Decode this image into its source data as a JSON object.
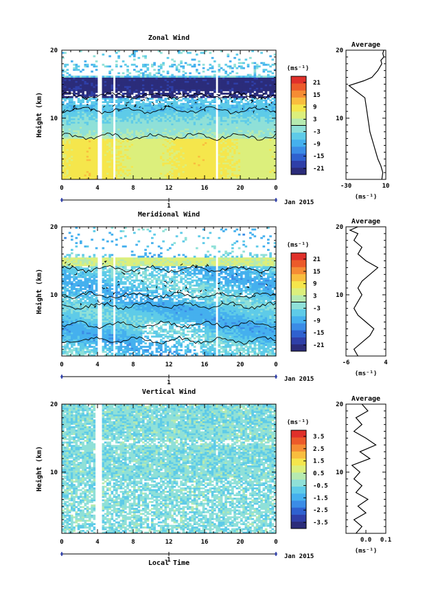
{
  "colormap": [
    "#2b2c7a",
    "#2f3fa8",
    "#2f61cf",
    "#3b8ce6",
    "#45b0ee",
    "#5ecbe8",
    "#8fe0d8",
    "#b6eab0",
    "#dcef7c",
    "#f5e64c",
    "#f9bd3e",
    "#f58c34",
    "#ec5a2a",
    "#e0302a"
  ],
  "chart_data": [
    {
      "type": "heatmap",
      "id": "zonal",
      "title": "Zonal Wind",
      "ylabel": "Height (km)",
      "xlabel": "",
      "x_ticks": [
        "0",
        "4",
        "8",
        "12",
        "16",
        "20",
        "0"
      ],
      "y_ticks": [
        "20",
        "10"
      ],
      "xlim": [
        0,
        24
      ],
      "ylim": [
        1,
        20
      ],
      "date_label": "Jan 2015",
      "day_label": "1",
      "colorbar": {
        "unit": "(ms⁻¹)",
        "range": [
          -24,
          24
        ],
        "tick_labels": [
          "21",
          "15",
          "9",
          "3",
          "-3",
          "-9",
          "-15",
          "-21"
        ],
        "tick_values": [
          21,
          15,
          9,
          3,
          -3,
          -9,
          -15,
          -21
        ],
        "zero_line": true
      },
      "profile": {
        "title": "Average",
        "xlabel": "(ms⁻¹)",
        "x_ticks": [
          "-30",
          "10"
        ],
        "x_tick_values": [
          -30,
          10
        ],
        "xlim": [
          -30,
          10
        ],
        "y_ticks": [
          "20",
          "10"
        ],
        "points": [
          [
            6,
            1
          ],
          [
            7,
            2
          ],
          [
            5,
            3
          ],
          [
            2,
            4
          ],
          [
            0,
            5
          ],
          [
            -2,
            6
          ],
          [
            -4,
            7
          ],
          [
            -6,
            8
          ],
          [
            -7,
            9
          ],
          [
            -8,
            10
          ],
          [
            -9,
            11
          ],
          [
            -10,
            12
          ],
          [
            -11,
            13
          ],
          [
            -20,
            14
          ],
          [
            -27,
            14.8
          ],
          [
            -12,
            15.5
          ],
          [
            -4,
            16
          ],
          [
            2,
            17
          ],
          [
            4,
            17.5
          ],
          [
            6,
            18
          ],
          [
            5,
            18.5
          ],
          [
            8,
            19
          ],
          [
            7,
            19.5
          ],
          [
            8,
            20
          ]
        ]
      }
    },
    {
      "type": "heatmap",
      "id": "meridional",
      "title": "Meridional Wind",
      "ylabel": "Height (km)",
      "xlabel": "",
      "x_ticks": [
        "0",
        "4",
        "8",
        "12",
        "16",
        "20",
        "0"
      ],
      "y_ticks": [
        "20",
        "10"
      ],
      "xlim": [
        0,
        24
      ],
      "ylim": [
        1,
        20
      ],
      "date_label": "Jan 2015",
      "day_label": "1",
      "colorbar": {
        "unit": "(ms⁻¹)",
        "range": [
          -24,
          24
        ],
        "tick_labels": [
          "21",
          "15",
          "9",
          "3",
          "-3",
          "-9",
          "-15",
          "-21"
        ],
        "tick_values": [
          21,
          15,
          9,
          3,
          -3,
          -9,
          -15,
          -21
        ],
        "zero_line": true
      },
      "profile": {
        "title": "Average",
        "xlabel": "(ms⁻¹)",
        "x_ticks": [
          "-6",
          "4"
        ],
        "x_tick_values": [
          -6,
          4
        ],
        "xlim": [
          -6,
          4
        ],
        "y_ticks": [
          "20",
          "10"
        ],
        "points": [
          [
            -3,
            1
          ],
          [
            -4,
            2
          ],
          [
            -2,
            3
          ],
          [
            0,
            4
          ],
          [
            1,
            5
          ],
          [
            -1,
            6
          ],
          [
            -3,
            7
          ],
          [
            -4,
            8
          ],
          [
            -3,
            9
          ],
          [
            -2,
            10
          ],
          [
            -3,
            11
          ],
          [
            -2,
            12
          ],
          [
            0,
            13
          ],
          [
            2,
            14
          ],
          [
            -1,
            15
          ],
          [
            -3,
            16
          ],
          [
            -2,
            17
          ],
          [
            -4,
            18
          ],
          [
            -3,
            19
          ],
          [
            -5,
            19.5
          ],
          [
            -3,
            20
          ]
        ]
      }
    },
    {
      "type": "heatmap",
      "id": "vertical",
      "title": "Vertical Wind",
      "ylabel": "Height (km)",
      "xlabel": "Local Time",
      "x_ticks": [
        "0",
        "4",
        "8",
        "12",
        "16",
        "20",
        "0"
      ],
      "y_ticks": [
        "20",
        "10"
      ],
      "xlim": [
        0,
        24
      ],
      "ylim": [
        1,
        20
      ],
      "date_label": "Jan 2015",
      "day_label": "1",
      "colorbar": {
        "unit": "(ms⁻¹)",
        "range": [
          -4,
          4
        ],
        "tick_labels": [
          "3.5",
          "2.5",
          "1.5",
          "0.5",
          "-0.5",
          "-1.5",
          "-2.5",
          "-3.5"
        ],
        "tick_values": [
          3.5,
          2.5,
          1.5,
          0.5,
          -0.5,
          -1.5,
          -2.5,
          -3.5
        ],
        "zero_line": false
      },
      "profile": {
        "title": "Average",
        "xlabel": "(ms⁻¹)",
        "x_ticks": [
          "0.0",
          "0.1"
        ],
        "x_tick_values": [
          0.0,
          0.1
        ],
        "xlim": [
          -0.1,
          0.1
        ],
        "y_ticks": [
          "20",
          "10"
        ],
        "points": [
          [
            -0.05,
            1
          ],
          [
            -0.02,
            2
          ],
          [
            -0.06,
            3
          ],
          [
            0.0,
            4
          ],
          [
            -0.04,
            5
          ],
          [
            0.01,
            6
          ],
          [
            -0.05,
            7
          ],
          [
            -0.02,
            8
          ],
          [
            -0.06,
            9
          ],
          [
            -0.03,
            10
          ],
          [
            -0.07,
            11
          ],
          [
            0.02,
            12
          ],
          [
            -0.03,
            13
          ],
          [
            0.05,
            14
          ],
          [
            0.0,
            15
          ],
          [
            -0.06,
            16
          ],
          [
            -0.02,
            17
          ],
          [
            -0.05,
            18
          ],
          [
            0.01,
            19
          ],
          [
            -0.02,
            20
          ]
        ]
      }
    }
  ]
}
